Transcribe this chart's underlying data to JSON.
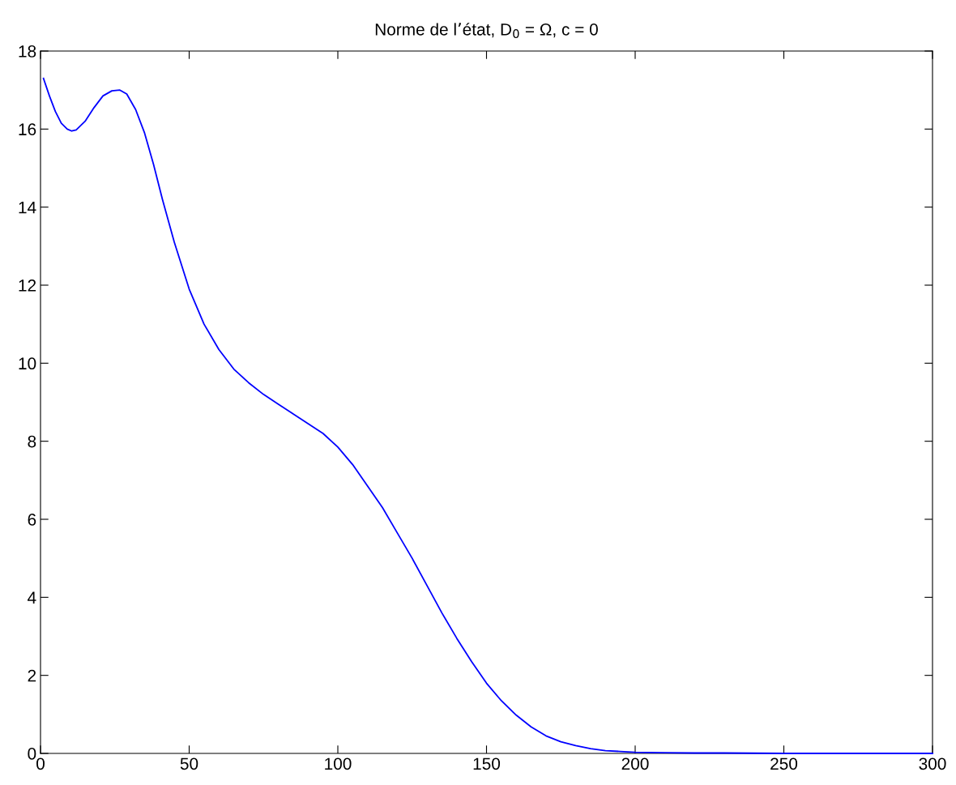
{
  "chart_data": {
    "type": "line",
    "title": "Norme de l’état, D$_{0}$ = Ω, c = 0",
    "x": [
      1,
      3,
      5,
      7,
      9,
      10.5,
      12,
      15,
      18,
      21,
      24,
      26.7,
      29,
      32,
      35,
      38,
      41,
      45,
      50,
      55,
      60,
      65,
      70,
      75,
      80,
      85,
      90,
      95,
      100,
      105,
      110,
      115,
      120,
      125,
      130,
      135,
      140,
      145,
      150,
      155,
      160,
      165,
      170,
      175,
      180,
      185,
      190,
      195,
      200,
      210,
      220,
      230,
      250,
      270,
      300
    ],
    "series": [
      {
        "color": "#0000ff",
        "values": [
          17.3,
          16.85,
          16.45,
          16.15,
          16.0,
          15.95,
          15.98,
          16.2,
          16.55,
          16.85,
          16.98,
          17.0,
          16.9,
          16.5,
          15.9,
          15.1,
          14.2,
          13.1,
          11.9,
          11.0,
          10.35,
          9.85,
          9.5,
          9.2,
          8.95,
          8.7,
          8.45,
          8.2,
          7.85,
          7.4,
          6.85,
          6.3,
          5.65,
          5.0,
          4.3,
          3.6,
          2.95,
          2.35,
          1.8,
          1.35,
          0.98,
          0.68,
          0.45,
          0.3,
          0.2,
          0.12,
          0.07,
          0.05,
          0.03,
          0.02,
          0.01,
          0.01,
          0.0,
          0.0,
          0.0
        ]
      }
    ],
    "xlim": [
      0,
      300
    ],
    "xticks": [
      0,
      50,
      100,
      150,
      200,
      250,
      300
    ],
    "ylim": [
      0,
      18
    ],
    "yticks": [
      0,
      2,
      4,
      6,
      8,
      10,
      12,
      14,
      16,
      18
    ],
    "grid": false,
    "legend": false,
    "marker": "none",
    "line_style": "solid"
  }
}
